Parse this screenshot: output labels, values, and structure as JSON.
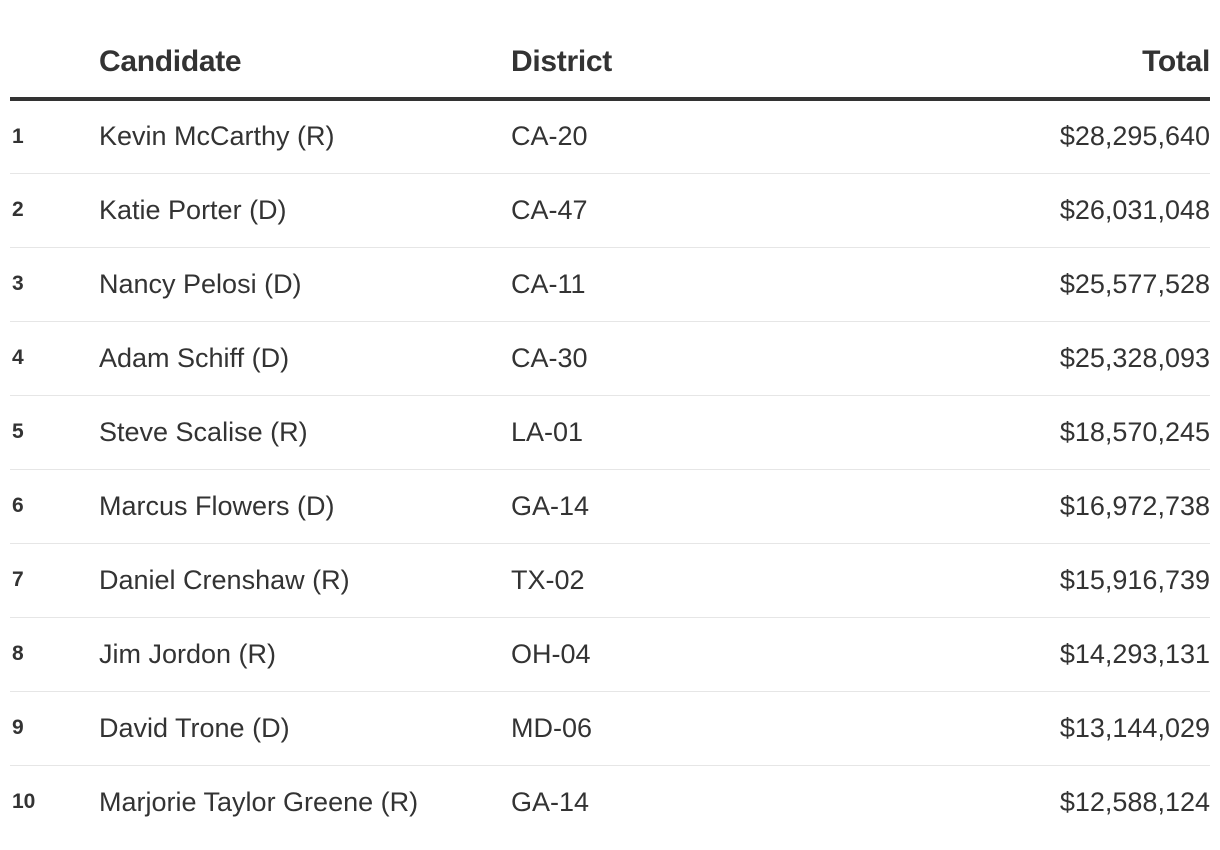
{
  "chart_data": {
    "type": "table",
    "columns": [
      "",
      "Candidate",
      "District",
      "Total"
    ],
    "rows": [
      {
        "rank": "1",
        "candidate": "Kevin McCarthy (R)",
        "district": "CA-20",
        "total": "$28,295,640"
      },
      {
        "rank": "2",
        "candidate": "Katie Porter (D)",
        "district": "CA-47",
        "total": "$26,031,048"
      },
      {
        "rank": "3",
        "candidate": "Nancy Pelosi (D)",
        "district": "CA-11",
        "total": "$25,577,528"
      },
      {
        "rank": "4",
        "candidate": "Adam Schiff (D)",
        "district": "CA-30",
        "total": "$25,328,093"
      },
      {
        "rank": "5",
        "candidate": "Steve Scalise (R)",
        "district": "LA-01",
        "total": "$18,570,245"
      },
      {
        "rank": "6",
        "candidate": "Marcus Flowers (D)",
        "district": "GA-14",
        "total": "$16,972,738"
      },
      {
        "rank": "7",
        "candidate": "Daniel Crenshaw (R)",
        "district": "TX-02",
        "total": "$15,916,739"
      },
      {
        "rank": "8",
        "candidate": "Jim Jordon (R)",
        "district": "OH-04",
        "total": "$14,293,131"
      },
      {
        "rank": "9",
        "candidate": "David Trone (D)",
        "district": "MD-06",
        "total": "$13,144,029"
      },
      {
        "rank": "10",
        "candidate": "Marjorie Taylor Greene (R)",
        "district": "GA-14",
        "total": "$12,588,124"
      }
    ],
    "values": [
      28295640,
      26031048,
      25577528,
      25328093,
      18570245,
      16972738,
      15916739,
      14293131,
      13144029,
      12588124
    ]
  }
}
